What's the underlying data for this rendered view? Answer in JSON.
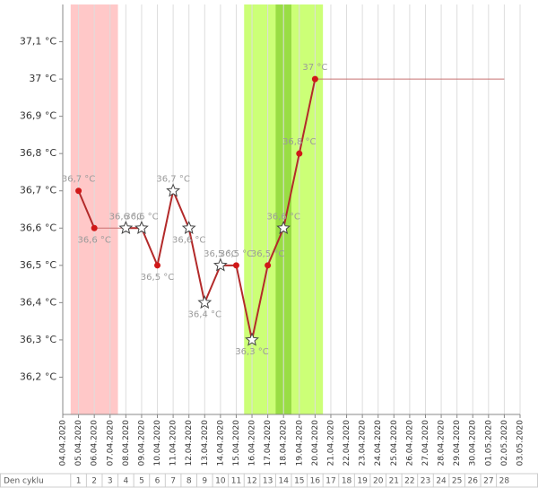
{
  "chart_data": {
    "type": "line",
    "x": [
      "04.04.2020",
      "05.04.2020",
      "06.04.2020",
      "07.04.2020",
      "08.04.2020",
      "09.04.2020",
      "10.04.2020",
      "11.04.2020",
      "12.04.2020",
      "13.04.2020",
      "14.04.2020",
      "15.04.2020",
      "16.04.2020",
      "17.04.2020",
      "18.04.2020",
      "19.04.2020",
      "20.04.2020",
      "21.04.2020",
      "22.04.2020",
      "23.04.2020",
      "24.04.2020",
      "25.04.2020",
      "26.04.2020",
      "27.04.2020",
      "28.04.2020",
      "29.04.2020",
      "30.04.2020",
      "01.05.2020",
      "02.05.2020",
      "03.05.2020"
    ],
    "series": [
      {
        "color": "#b32a2a",
        "values": [
          null,
          36.7,
          36.6,
          null,
          36.6,
          36.6,
          36.5,
          36.7,
          36.6,
          36.4,
          36.5,
          36.5,
          36.3,
          36.5,
          36.6,
          36.8,
          37.0,
          null,
          null,
          null,
          null,
          null,
          null,
          null,
          null,
          null,
          null,
          null,
          null,
          null
        ],
        "value_labels": [
          null,
          "36,7 °C",
          "36,6 °C",
          null,
          "36,6 °C",
          "36,6 °C",
          "36,5 °C",
          "36,7 °C",
          "36,6 °C",
          "36,4 °C",
          "36,5 °C",
          "36,5 °C",
          "36,3 °C",
          "36,5 °C",
          "36,6 °C",
          "36,8 °C",
          "37 °C",
          null,
          null,
          null,
          null,
          null,
          null,
          null,
          null,
          null,
          null,
          null,
          null,
          null
        ],
        "markers": [
          null,
          "dot",
          "dot",
          null,
          "star",
          "star",
          "dot",
          "star",
          "star",
          "star",
          "star",
          "dot",
          "star",
          "dot",
          "star",
          "dot",
          "dot",
          null,
          null,
          null,
          null,
          null,
          null,
          null,
          null,
          null,
          null,
          null,
          null,
          null
        ]
      }
    ],
    "ylim": [
      36.1,
      37.2
    ],
    "yticks": [
      {
        "value": 36.2,
        "label": "36,2 °C"
      },
      {
        "value": 36.3,
        "label": "36,3 °C"
      },
      {
        "value": 36.4,
        "label": "36,4 °C"
      },
      {
        "value": 36.5,
        "label": "36,5 °C"
      },
      {
        "value": 36.6,
        "label": "36,6 °C"
      },
      {
        "value": 36.7,
        "label": "36,7 °C"
      },
      {
        "value": 36.8,
        "label": "36,8 °C"
      },
      {
        "value": 36.9,
        "label": "36,9 °C"
      },
      {
        "value": 37.0,
        "label": "37 °C"
      },
      {
        "value": 37.1,
        "label": "37,1 °C"
      }
    ],
    "bands": [
      {
        "from": 1,
        "to": 3,
        "color": "#ffc8c8"
      },
      {
        "from": 12,
        "to": 16,
        "color": "#ccff77"
      },
      {
        "from": 14,
        "to": 14,
        "color": "#99dd44"
      }
    ],
    "extend_to": 28,
    "cycle_label": "Den cyklu",
    "cycle_days": [
      1,
      2,
      3,
      4,
      5,
      6,
      7,
      8,
      9,
      10,
      11,
      12,
      13,
      14,
      15,
      16,
      17,
      18,
      19,
      20,
      21,
      22,
      23,
      24,
      25,
      26,
      27,
      28
    ]
  }
}
